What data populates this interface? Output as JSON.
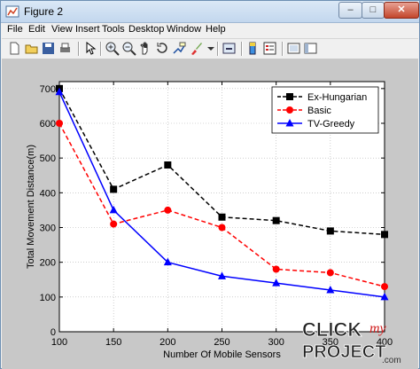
{
  "window": {
    "title": "Figure 2",
    "controls": {
      "minimize": "–",
      "maximize": "□",
      "close": "✕"
    }
  },
  "menu": [
    "File",
    "Edit",
    "View",
    "Insert",
    "Tools",
    "Desktop",
    "Window",
    "Help"
  ],
  "toolbar": [
    "new-figure-icon",
    "open-file-icon",
    "save-icon",
    "print-icon",
    "edit-plot-arrow-icon",
    "zoom-in-icon",
    "zoom-out-icon",
    "pan-hand-icon",
    "rotate-3d-icon",
    "data-cursor-icon",
    "brush-icon",
    "link-plot-icon",
    "colorbar-icon",
    "legend-icon",
    "hide-plot-tools-icon",
    "show-plot-tools-icon"
  ],
  "chart_data": {
    "type": "line",
    "xlabel": "Number Of Mobile Sensors",
    "ylabel": "Total Movement Distance(m)",
    "xlim": [
      100,
      400
    ],
    "ylim": [
      0,
      720
    ],
    "x": [
      100,
      150,
      200,
      250,
      300,
      350,
      400
    ],
    "xticks": [
      "100",
      "150",
      "200",
      "250",
      "300",
      "350",
      "400"
    ],
    "yticks": [
      "0",
      "100",
      "200",
      "300",
      "400",
      "500",
      "600",
      "700"
    ],
    "ytick_values": [
      0,
      100,
      200,
      300,
      400,
      500,
      600,
      700
    ],
    "legend_position": "top-right",
    "series": [
      {
        "name": "Ex-Hungarian",
        "values": [
          700,
          410,
          480,
          330,
          320,
          290,
          280
        ],
        "color": "#000000",
        "dash": "dashed",
        "marker": "square"
      },
      {
        "name": "Basic",
        "values": [
          600,
          310,
          350,
          300,
          180,
          170,
          130
        ],
        "color": "#ff0000",
        "dash": "dashed",
        "marker": "circle"
      },
      {
        "name": "TV-Greedy",
        "values": [
          690,
          350,
          200,
          160,
          140,
          120,
          100
        ],
        "color": "#0000ff",
        "dash": "solid",
        "marker": "triangle"
      }
    ]
  },
  "watermark": {
    "line1": "CLICK",
    "line2": "my",
    "line3": "PROJECT",
    "suffix": ".com"
  }
}
